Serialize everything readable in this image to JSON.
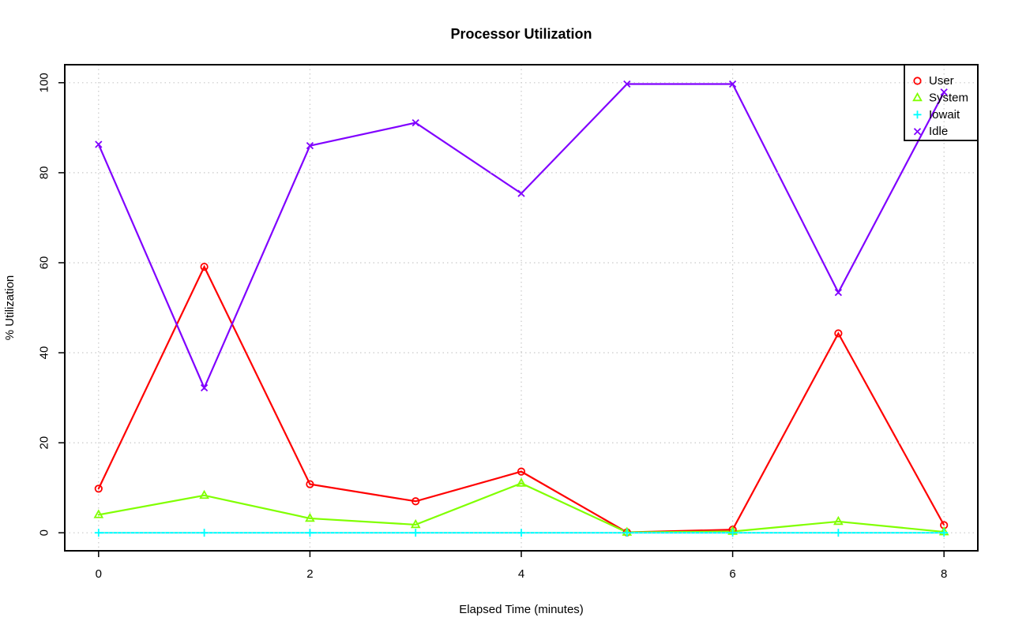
{
  "title": "Processor Utilization",
  "chart_data": {
    "type": "line",
    "title": "Processor Utilization",
    "xlabel": "Elapsed Time (minutes)",
    "ylabel": "% Utilization",
    "x": [
      0,
      1,
      2,
      3,
      4,
      5,
      6,
      7,
      8
    ],
    "series": [
      {
        "name": "User",
        "color": "#FF0000",
        "marker": "circle",
        "values": [
          9.8,
          59.1,
          10.8,
          7.0,
          13.6,
          0.1,
          0.7,
          44.3,
          1.7
        ]
      },
      {
        "name": "System",
        "color": "#80FF00",
        "marker": "triangle",
        "values": [
          4.0,
          8.3,
          3.2,
          1.8,
          11.0,
          0.1,
          0.3,
          2.5,
          0.2
        ]
      },
      {
        "name": "Iowait",
        "color": "#00FFFF",
        "marker": "plus",
        "values": [
          0,
          0,
          0,
          0,
          0,
          0,
          0,
          0,
          0
        ]
      },
      {
        "name": "Idle",
        "color": "#8000FF",
        "marker": "x",
        "values": [
          86.3,
          32.2,
          86.0,
          91.1,
          75.4,
          99.7,
          99.7,
          53.4,
          97.9
        ]
      }
    ],
    "xticks": [
      0,
      2,
      4,
      6,
      8
    ],
    "xtick_labels": [
      "0",
      "2",
      "4",
      "6",
      "8"
    ],
    "yticks": [
      0,
      20,
      40,
      60,
      80,
      100
    ],
    "ytick_labels": [
      "0",
      "20",
      "40",
      "60",
      "80",
      "100"
    ],
    "xlim": [
      -0.32,
      8.32
    ],
    "ylim": [
      -4,
      104
    ],
    "grid": true,
    "grid_style": "dotted",
    "grid_color": "#C9C9C9",
    "axis_color": "#000000",
    "background_color": "#FFFFFF",
    "line_width": 2.2,
    "legend_position": "topright"
  }
}
